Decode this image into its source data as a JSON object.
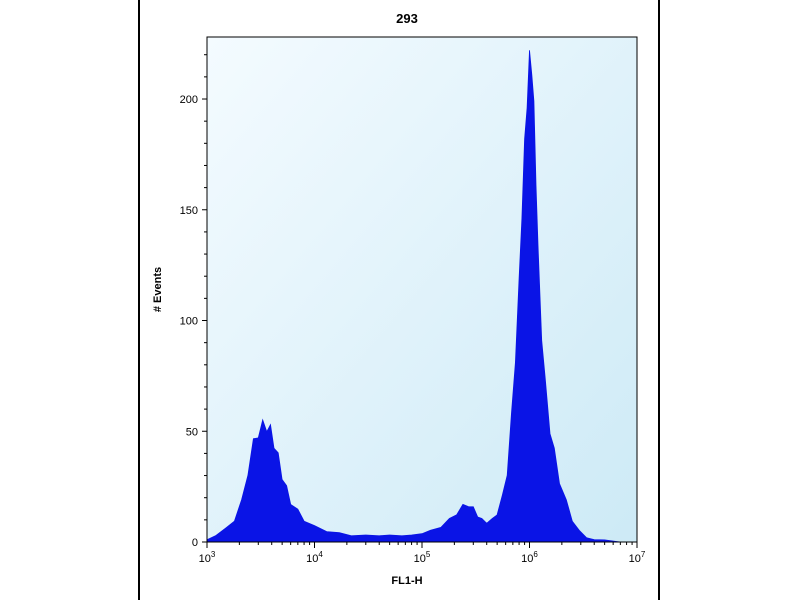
{
  "chart_data": {
    "type": "area",
    "title": "293",
    "xlabel": "FL1-H",
    "ylabel": "# Events",
    "xscale": "log",
    "xlim": [
      1000,
      10000000
    ],
    "ylim": [
      0,
      228
    ],
    "x_ticks": [
      {
        "value": 1000,
        "base": "10",
        "exp": "3"
      },
      {
        "value": 10000,
        "base": "10",
        "exp": "4"
      },
      {
        "value": 100000,
        "base": "10",
        "exp": "5"
      },
      {
        "value": 1000000,
        "base": "10",
        "exp": "6"
      },
      {
        "value": 10000000,
        "base": "10",
        "exp": "7"
      }
    ],
    "y_ticks": [
      0,
      50,
      100,
      150,
      200
    ],
    "grid": false,
    "colors": {
      "fill": "#0a14e6",
      "background_top": "#f4fbff",
      "background_bottom": "#cdeaf6"
    },
    "series": [
      {
        "x": [
          1000,
          1200,
          1500,
          1800,
          2100,
          2400,
          2700,
          3000,
          3300,
          3600,
          3900,
          4200,
          4600,
          5000,
          5500,
          6000,
          7000,
          8000,
          10000,
          13000,
          17000,
          22000,
          30000,
          40000,
          50000,
          65000,
          80000,
          100000,
          120000,
          150000,
          180000,
          210000,
          240000,
          270000,
          300000,
          330000,
          360000,
          400000,
          450000,
          500000,
          560000,
          620000,
          680000,
          740000,
          800000,
          850000,
          900000,
          950000,
          1000000,
          1050000,
          1100000,
          1150000,
          1200000,
          1300000,
          1400000,
          1550000,
          1700000,
          1900000,
          2200000,
          2500000,
          2900000,
          3400000,
          4000000,
          5000000,
          7000000
        ],
        "y": [
          1,
          3,
          6,
          10,
          18,
          32,
          44,
          50,
          52,
          53,
          50,
          45,
          38,
          30,
          24,
          18,
          14,
          10,
          7,
          5,
          4,
          3,
          3,
          3,
          3,
          3,
          3,
          4,
          5,
          7,
          10,
          13,
          16,
          17,
          15,
          12,
          10,
          9,
          10,
          13,
          20,
          32,
          55,
          85,
          115,
          150,
          178,
          200,
          218,
          215,
          195,
          165,
          130,
          95,
          70,
          52,
          40,
          28,
          18,
          10,
          5,
          2,
          1,
          1,
          0
        ]
      }
    ]
  }
}
